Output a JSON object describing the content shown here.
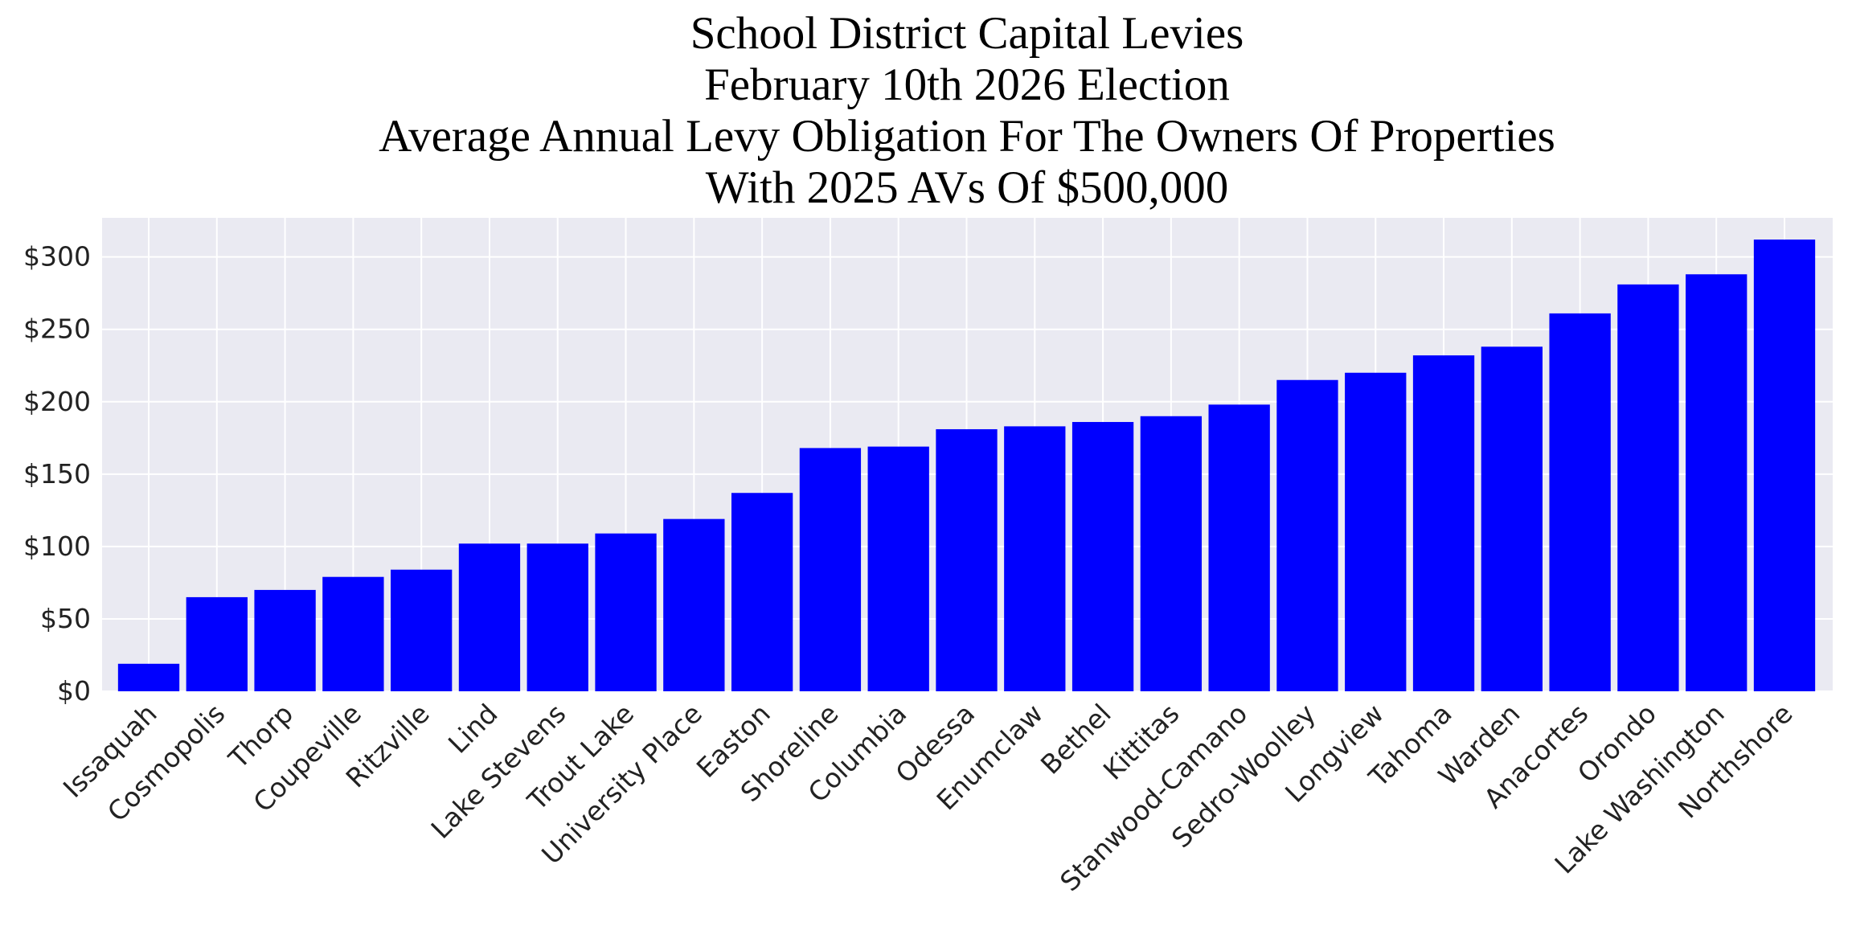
{
  "chart_data": {
    "type": "bar",
    "title": [
      "School District Capital Levies",
      "February 10th 2026 Election",
      "Average Annual Levy Obligation For The Owners Of Properties",
      "With 2025 AVs Of $500,000"
    ],
    "categories": [
      "Issaquah",
      "Cosmopolis",
      "Thorp",
      "Coupeville",
      "Ritzville",
      "Lind",
      "Lake Stevens",
      "Trout Lake",
      "University Place",
      "Easton",
      "Shoreline",
      "Columbia",
      "Odessa",
      "Enumclaw",
      "Bethel",
      "Kittitas",
      "Stanwood-Camano",
      "Sedro-Woolley",
      "Longview",
      "Tahoma",
      "Warden",
      "Anacortes",
      "Orondo",
      "Lake Washington",
      "Northshore"
    ],
    "values": [
      19,
      65,
      70,
      79,
      84,
      102,
      102,
      109,
      119,
      137,
      168,
      169,
      181,
      183,
      186,
      190,
      198,
      215,
      220,
      232,
      238,
      261,
      281,
      288,
      312
    ],
    "color": "#0000ff",
    "ylim": [
      0,
      327
    ],
    "yticks": [
      {
        "value": 0,
        "label": "$0"
      },
      {
        "value": 50,
        "label": "$50"
      },
      {
        "value": 100,
        "label": "$100"
      },
      {
        "value": 150,
        "label": "$150"
      },
      {
        "value": 200,
        "label": "$200"
      },
      {
        "value": 250,
        "label": "$250"
      },
      {
        "value": 300,
        "label": "$300"
      }
    ],
    "grid": true
  }
}
